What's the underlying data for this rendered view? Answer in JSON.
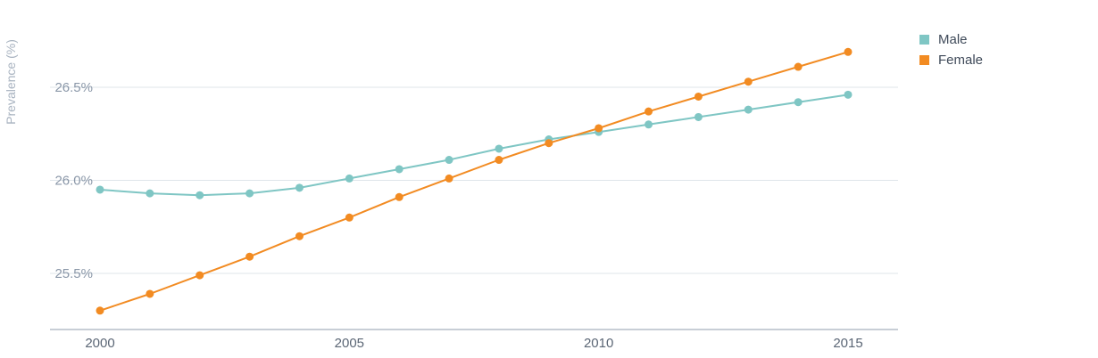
{
  "chart_data": {
    "type": "line",
    "title": "",
    "xlabel": "",
    "ylabel": "Prevalence (%)",
    "x": [
      2000,
      2001,
      2002,
      2003,
      2004,
      2005,
      2006,
      2007,
      2008,
      2009,
      2010,
      2011,
      2012,
      2013,
      2014,
      2015
    ],
    "xlim": [
      2000,
      2016
    ],
    "ylim": [
      25.2,
      26.8
    ],
    "x_ticks": [
      2000,
      2005,
      2010,
      2015
    ],
    "x_tick_labels": [
      "2000",
      "2005",
      "2010",
      "2015"
    ],
    "y_ticks": [
      25.5,
      26.0,
      26.5
    ],
    "y_tick_labels": [
      "25.5%",
      "26.0%",
      "26.5%"
    ],
    "grid": true,
    "legend": "top-right",
    "series": [
      {
        "name": "Male",
        "color": "#7fc6c4",
        "values": [
          25.95,
          25.93,
          25.92,
          25.93,
          25.96,
          26.01,
          26.06,
          26.11,
          26.17,
          26.22,
          26.26,
          26.3,
          26.34,
          26.38,
          26.42,
          26.46
        ]
      },
      {
        "name": "Female",
        "color": "#f28b22",
        "values": [
          25.3,
          25.39,
          25.49,
          25.59,
          25.7,
          25.8,
          25.91,
          26.01,
          26.11,
          26.2,
          26.28,
          26.37,
          26.45,
          26.53,
          26.61,
          26.69
        ]
      }
    ]
  },
  "colors": {
    "grid": "#dfe5ea",
    "axis": "#b5bec8"
  }
}
